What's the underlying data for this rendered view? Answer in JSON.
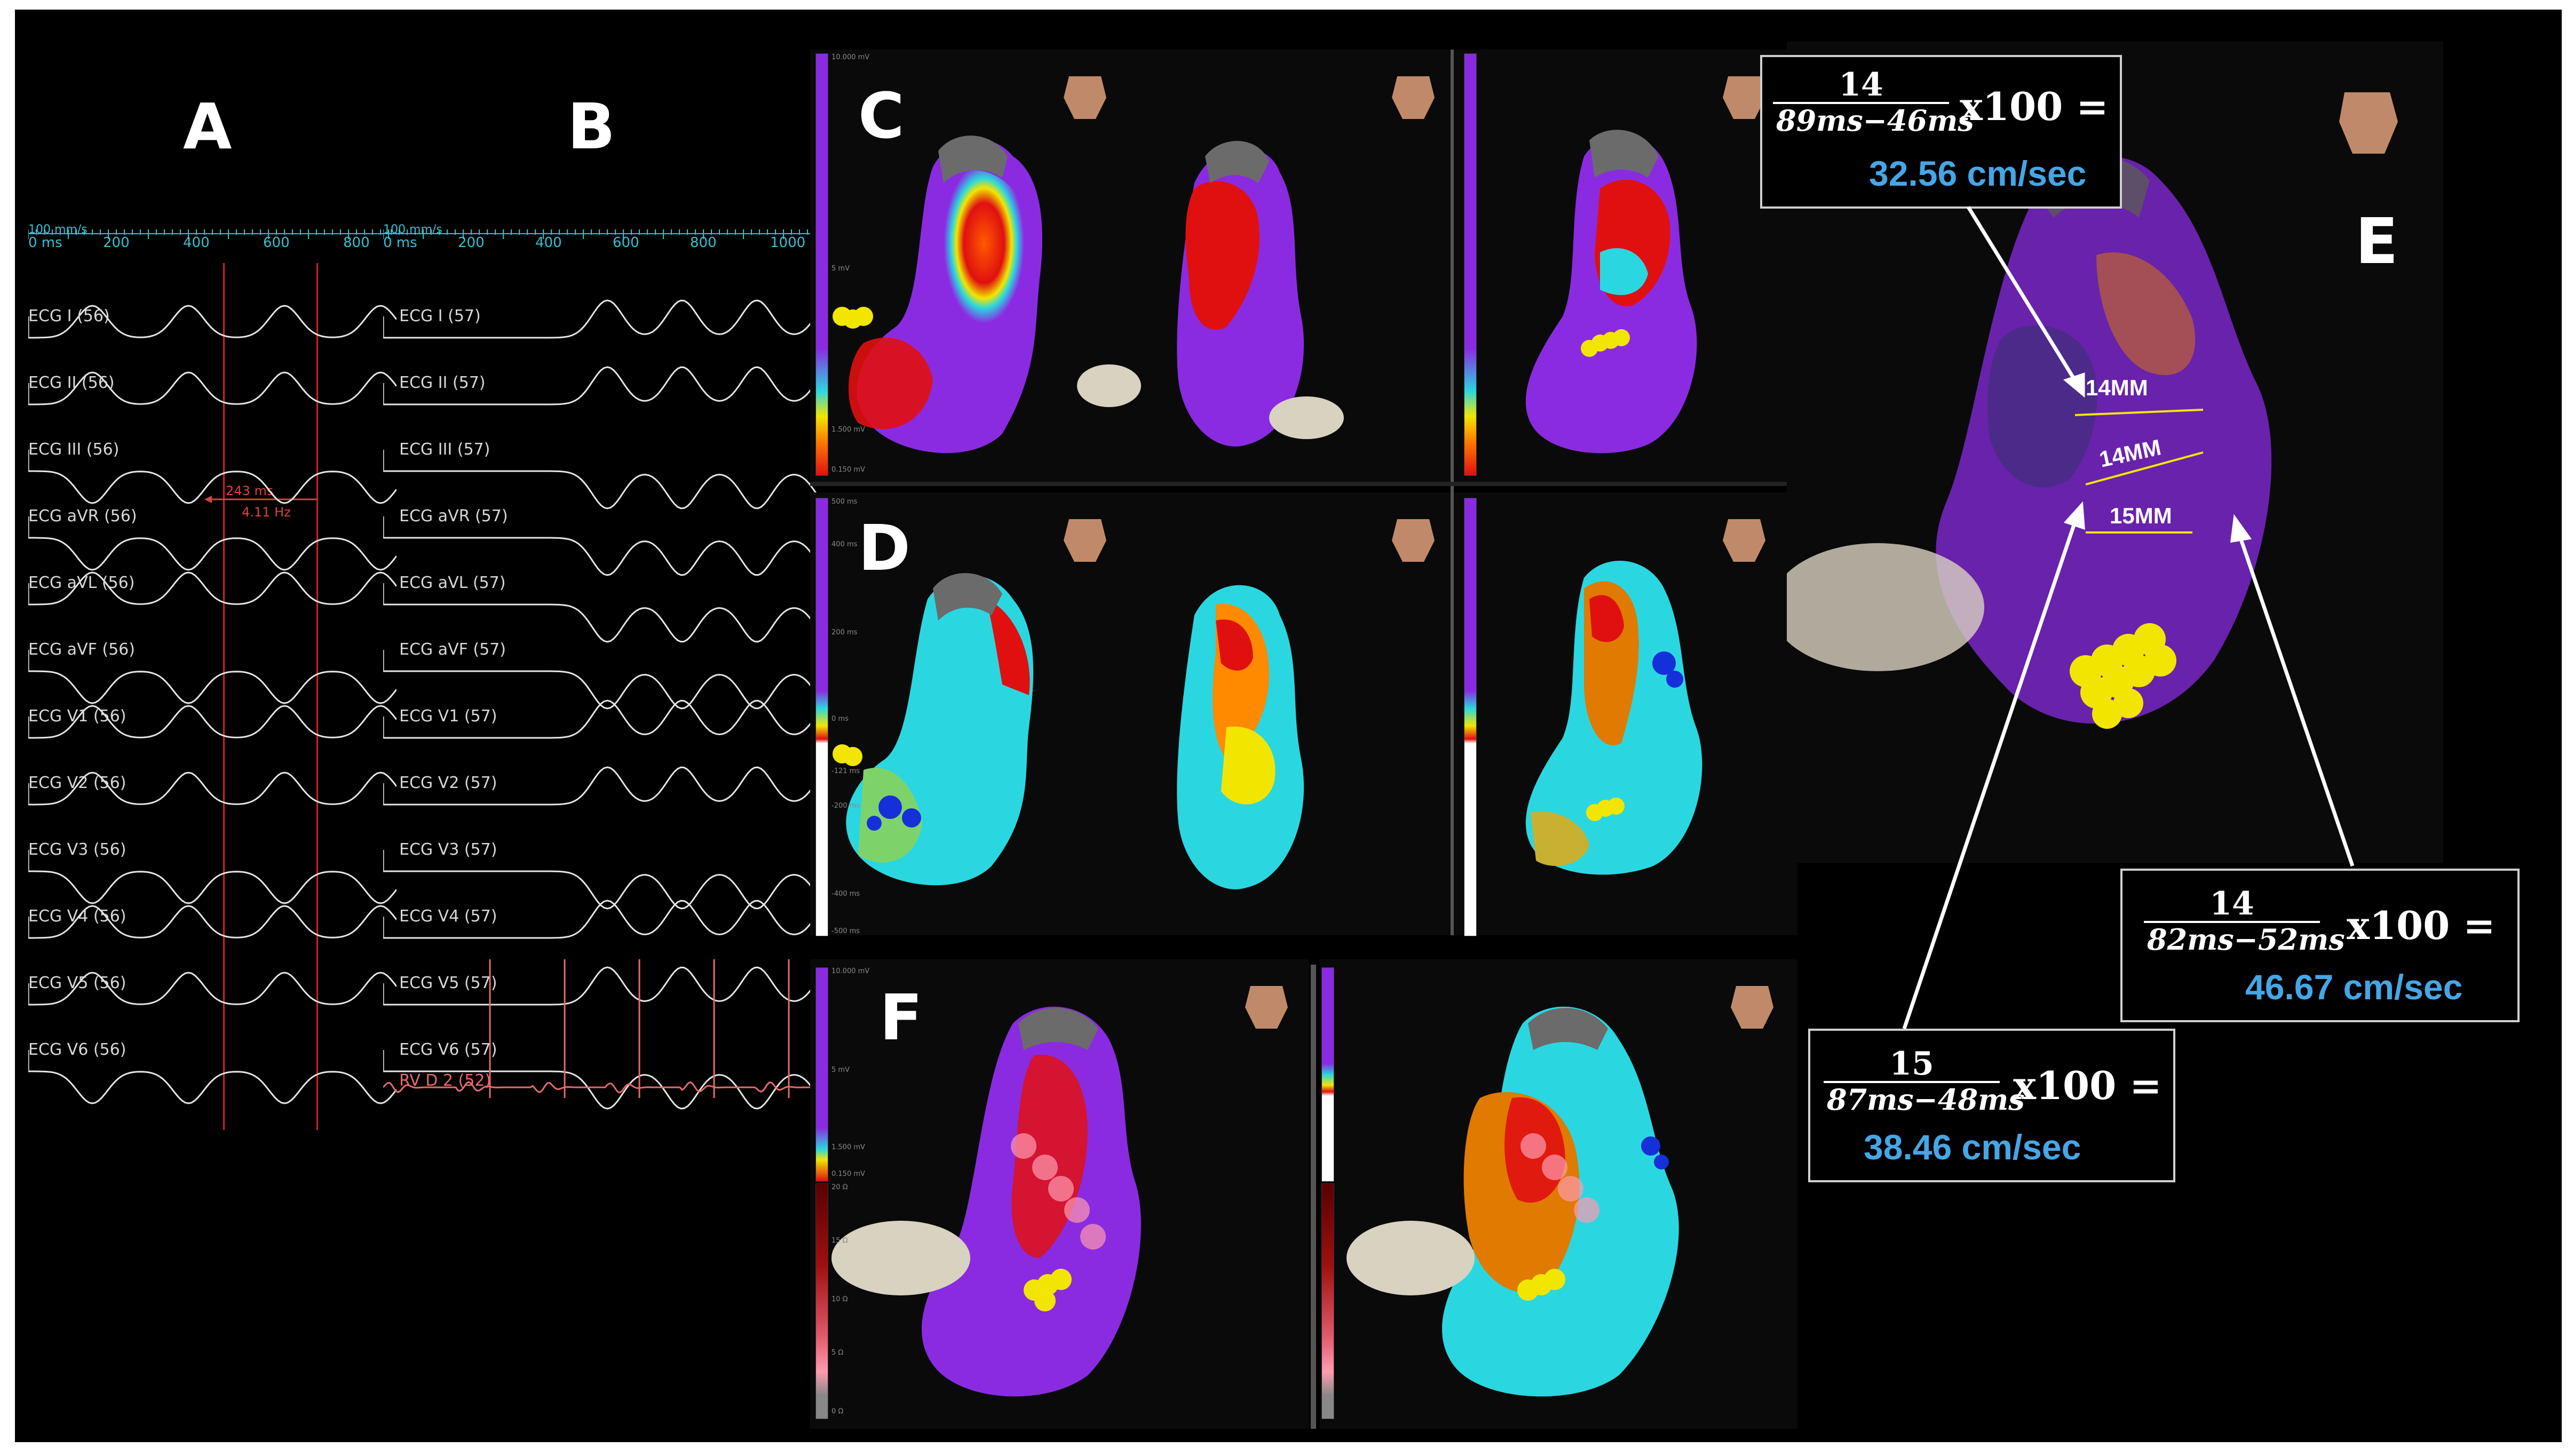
{
  "panels": {
    "a": "A",
    "b": "B",
    "c": "C",
    "d": "D",
    "e": "E",
    "f": "F"
  },
  "ruler_a": {
    "scale": "100 mm/s",
    "ticks": [
      "0 ms",
      "200",
      "400",
      "600",
      "800"
    ]
  },
  "ruler_b": {
    "scale": "100 mm/s",
    "ticks": [
      "0 ms",
      "200",
      "400",
      "600",
      "800",
      "1000"
    ]
  },
  "ecg_a": [
    "ECG I (56)",
    "ECG II (56)",
    "ECG III (56)",
    "ECG aVR (56)",
    "ECG aVL (56)",
    "ECG aVF (56)",
    "ECG V1 (56)",
    "ECG V2 (56)",
    "ECG V3 (56)",
    "ECG V4 (56)",
    "ECG V5 (56)",
    "ECG V6 (56)"
  ],
  "ecg_b": [
    "ECG I (57)",
    "ECG II (57)",
    "ECG III (57)",
    "ECG aVR (57)",
    "ECG aVL (57)",
    "ECG aVF (57)",
    "ECG V1 (57)",
    "ECG V2 (57)",
    "ECG V3 (57)",
    "ECG V4 (57)",
    "ECG V5 (57)",
    "ECG V6 (57)"
  ],
  "rv_label": "RV D 2 (52)",
  "interval": {
    "ms": "243 ms",
    "hz": "4.11 Hz"
  },
  "voltage_bar": {
    "top": "10.000 mV",
    "mid": "5 mV",
    "low": "1.500 mV",
    "bottom": "0.150 mV"
  },
  "lat_bar": {
    "top": "500 ms",
    "a": "400 ms",
    "b": "200 ms",
    "zero": "0 ms",
    "c": "-121 ms",
    "d": "-200 ms",
    "e": "-400 ms",
    "bottom": "-500 ms"
  },
  "imp_bar": {
    "top": "20 Ω",
    "a": "15 Ω",
    "b": "10 Ω",
    "c": "5 Ω",
    "bottom": "0 Ω"
  },
  "measurements": [
    "14MM",
    "14MM",
    "15MM"
  ],
  "formulas": [
    {
      "num": "14",
      "den": "89ms−46ms",
      "mult": "x100 =",
      "result": "32.56 cm/sec"
    },
    {
      "num": "14",
      "den": "82ms−52ms",
      "mult": "x100 =",
      "result": "46.67 cm/sec"
    },
    {
      "num": "15",
      "den": "87ms−48ms",
      "mult": "x100 =",
      "result": "38.46 cm/sec"
    }
  ],
  "colors": {
    "purple": "#8a2be2",
    "red": "#e01010",
    "cyan": "#2ad7e0",
    "yellow": "#f2e600",
    "ruler": "#36c0d0",
    "speed": "#45a6e6"
  }
}
